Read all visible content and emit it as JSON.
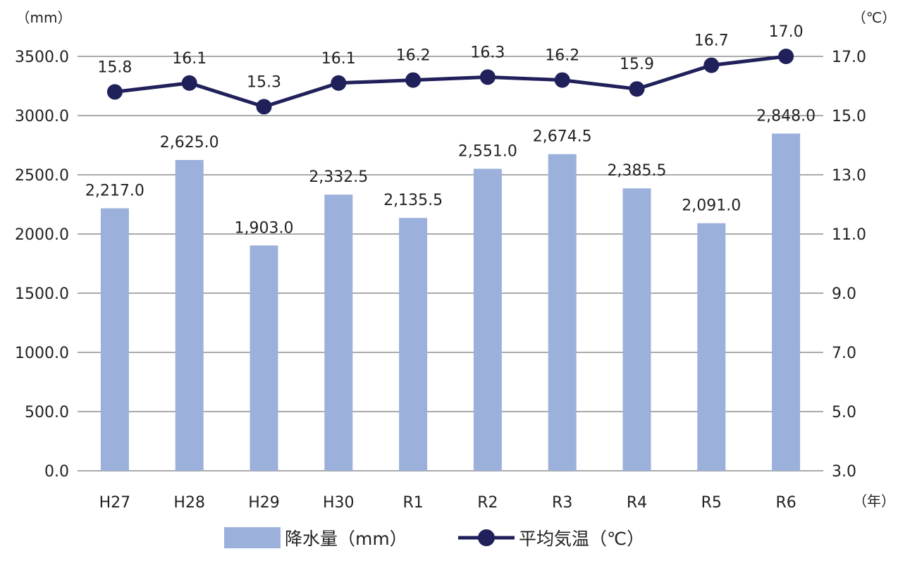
{
  "chart_data": {
    "type": "bar+line",
    "categories": [
      "H27",
      "H28",
      "H29",
      "H30",
      "R1",
      "R2",
      "R3",
      "R4",
      "R5",
      "R6"
    ],
    "series": [
      {
        "name": "降水量（mm）",
        "type": "bar",
        "axis": "left",
        "values": [
          2217.0,
          2625.0,
          1903.0,
          2332.5,
          2135.5,
          2551.0,
          2674.5,
          2385.5,
          2091.0,
          2848.0
        ],
        "labels": [
          "2,217.0",
          "2,625.0",
          "1,903.0",
          "2,332.5",
          "2,135.5",
          "2,551.0",
          "2,674.5",
          "2,385.5",
          "2,091.0",
          "2,848.0"
        ],
        "color": "#9bb1dc"
      },
      {
        "name": "平均気温（℃）",
        "type": "line",
        "axis": "right",
        "values": [
          15.8,
          16.1,
          15.3,
          16.1,
          16.2,
          16.3,
          16.2,
          15.9,
          16.7,
          17.0
        ],
        "labels": [
          "15.8",
          "16.1",
          "15.3",
          "16.1",
          "16.2",
          "16.3",
          "16.2",
          "15.9",
          "16.7",
          "17.0"
        ],
        "color": "#20205a"
      }
    ],
    "y_left": {
      "unit": "（mm）",
      "ylim": [
        0,
        3500
      ],
      "ticks": [
        0,
        500,
        1000,
        1500,
        2000,
        2500,
        3000,
        3500
      ],
      "tick_labels": [
        "0.0",
        "500.0",
        "1000.0",
        "1500.0",
        "2000.0",
        "2500.0",
        "3000.0",
        "3500.0"
      ]
    },
    "y_right": {
      "unit": "（℃）",
      "ylim": [
        3,
        17
      ],
      "ticks": [
        3,
        5,
        7,
        9,
        11,
        13,
        15,
        17
      ],
      "tick_labels": [
        "3.0",
        "5.0",
        "7.0",
        "9.0",
        "11.0",
        "13.0",
        "15.0",
        "17.0"
      ]
    },
    "x_unit": "（年）",
    "grid": true,
    "legend_position": "bottom"
  }
}
